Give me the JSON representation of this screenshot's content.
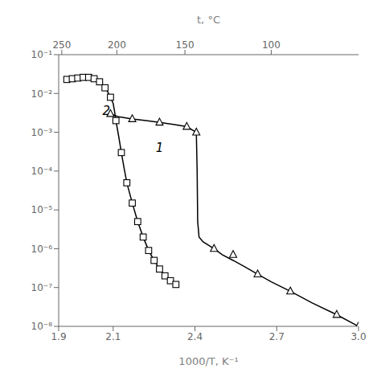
{
  "chart_data": {
    "type": "line",
    "xlabel": "1000/T, K⁻¹",
    "x2label": "t, °C",
    "log": "y",
    "grid": false,
    "xlim": [
      1.9,
      3.0
    ],
    "xticks": [
      1.9,
      2.1,
      2.4,
      2.7,
      {
        "value": 3.0,
        "label": "3.0"
      }
    ],
    "x2lim": [
      1.9,
      3.0
    ],
    "x2ticks": [
      {
        "value": 1.911497658,
        "label": "250"
      },
      {
        "value": 2.113494663,
        "label": "200"
      },
      {
        "value": 2.36322817,
        "label": "150"
      },
      {
        "value": 2.67988744,
        "label": "100"
      }
    ],
    "ylim": [
      1e-08,
      0.1
    ],
    "yticks": [
      {
        "value": 1e-08,
        "label": "10⁻⁸"
      },
      {
        "value": 1e-07,
        "label": "10⁻⁷"
      },
      {
        "value": 1e-06,
        "label": "10⁻⁶"
      },
      {
        "value": 1e-05,
        "label": "10⁻⁵"
      },
      {
        "value": 0.0001,
        "label": "10⁻⁴"
      },
      {
        "value": 0.001,
        "label": "10⁻³"
      },
      {
        "value": 0.01,
        "label": "10⁻²"
      },
      {
        "value": 0.1,
        "label": "10⁻¹"
      }
    ],
    "series": [
      {
        "type": "line",
        "color": "#000000",
        "x": [
          2.09,
          2.12,
          2.17,
          2.22,
          2.27,
          2.32,
          2.37,
          2.405,
          2.408,
          2.41,
          2.415,
          2.43,
          2.47,
          2.5,
          2.54,
          2.58,
          2.63,
          2.68,
          2.75,
          2.83,
          2.92,
          3.0
        ],
        "values": [
          0.003,
          0.0025,
          0.0022,
          0.002,
          0.0018,
          0.0016,
          0.0014,
          0.001,
          0.0001,
          5e-06,
          2e-06,
          1.5e-06,
          1e-06,
          7e-07,
          5e-07,
          3.5e-07,
          2.2e-07,
          1.4e-07,
          8e-08,
          4e-08,
          2e-08,
          1e-08
        ]
      },
      {
        "type": "scatter",
        "marker": "triangle",
        "color": "#000000",
        "x": [
          2.09,
          2.17,
          2.27,
          2.37,
          2.405,
          2.47,
          2.54,
          2.63,
          2.75,
          2.92,
          3.0
        ],
        "values": [
          0.003,
          0.0022,
          0.0018,
          0.0014,
          0.001,
          1e-06,
          7e-07,
          2.2e-07,
          8e-08,
          2e-08,
          1e-08
        ]
      },
      {
        "type": "line",
        "color": "#000000",
        "x": [
          1.93,
          1.95,
          1.97,
          1.99,
          2.0,
          2.01,
          2.02,
          2.03,
          2.04,
          2.05,
          2.06,
          2.07,
          2.08,
          2.09,
          2.1,
          2.105,
          2.11,
          2.12,
          2.13,
          2.14,
          2.15,
          2.17,
          2.19,
          2.21,
          2.23,
          2.25,
          2.27,
          2.29,
          2.31,
          2.33
        ],
        "values": [
          0.023,
          0.024,
          0.025,
          0.026,
          0.026,
          0.026,
          0.025,
          0.024,
          0.022,
          0.02,
          0.017,
          0.014,
          0.011,
          0.008,
          0.0055,
          0.0035,
          0.002,
          0.0008,
          0.0003,
          0.00012,
          5e-05,
          1.5e-05,
          5e-06,
          2e-06,
          9e-07,
          5e-07,
          3e-07,
          2e-07,
          1.5e-07,
          1.2e-07
        ]
      },
      {
        "type": "scatter",
        "marker": "square",
        "color": "#000000",
        "x": [
          1.93,
          1.95,
          1.97,
          1.99,
          2.01,
          2.03,
          2.05,
          2.07,
          2.09,
          2.11,
          2.13,
          2.15,
          2.17,
          2.19,
          2.21,
          2.23,
          2.25,
          2.27,
          2.29,
          2.31,
          2.33
        ],
        "values": [
          0.023,
          0.024,
          0.025,
          0.026,
          0.026,
          0.024,
          0.02,
          0.014,
          0.008,
          0.002,
          0.0003,
          5e-05,
          1.5e-05,
          5e-06,
          2e-06,
          9e-07,
          5e-07,
          3e-07,
          2e-07,
          1.5e-07,
          1.2e-07
        ]
      }
    ],
    "annotations": [
      {
        "text": "1",
        "x": 2.27,
        "y": 0.0004,
        "color": "#000000"
      },
      {
        "text": "2",
        "x": 2.075,
        "y": 0.0035,
        "color": "#000000"
      }
    ]
  }
}
